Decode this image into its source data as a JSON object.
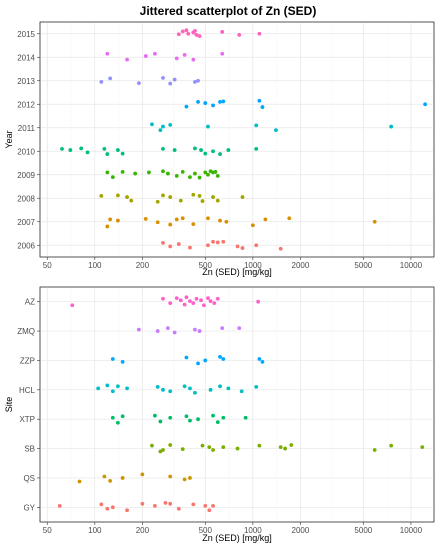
{
  "title": "Jittered scatterplot of Zn (SED)",
  "chart_data": [
    {
      "type": "scatter",
      "title": "Jittered scatterplot of Zn (SED)",
      "xlabel": "Zn (SED) [mg/kg]",
      "ylabel": "Year",
      "x_scale": "log",
      "xlim": [
        45,
        14000
      ],
      "x_ticks": [
        50,
        100,
        200,
        500,
        1000,
        2000,
        5000,
        10000
      ],
      "x_tick_labels": [
        "50",
        "100",
        "200",
        "500",
        "1000",
        "2000",
        "5000",
        "10000"
      ],
      "categories": [
        "2006",
        "2007",
        "2008",
        "2009",
        "2010",
        "2011",
        "2012",
        "2013",
        "2014",
        "2015"
      ],
      "grid": true,
      "series": [
        {
          "category": "2006",
          "color": "#F8766D",
          "points": [
            [
              270,
              0.1
            ],
            [
              300,
              -0.05
            ],
            [
              340,
              0.05
            ],
            [
              400,
              -0.1
            ],
            [
              520,
              0.0
            ],
            [
              560,
              0.15
            ],
            [
              600,
              0.12
            ],
            [
              650,
              0.15
            ],
            [
              800,
              -0.05
            ],
            [
              860,
              -0.12
            ],
            [
              1050,
              0.0
            ],
            [
              1500,
              -0.15
            ]
          ]
        },
        {
          "category": "2007",
          "color": "#D89000",
          "points": [
            [
              120,
              -0.2
            ],
            [
              125,
              0.1
            ],
            [
              140,
              0.05
            ],
            [
              210,
              0.12
            ],
            [
              250,
              -0.02
            ],
            [
              300,
              -0.12
            ],
            [
              330,
              0.1
            ],
            [
              360,
              0.15
            ],
            [
              420,
              -0.1
            ],
            [
              520,
              0.15
            ],
            [
              620,
              0.05
            ],
            [
              680,
              0.0
            ],
            [
              1000,
              -0.15
            ],
            [
              1200,
              0.1
            ],
            [
              1700,
              0.15
            ],
            [
              5900,
              0.0
            ]
          ]
        },
        {
          "category": "2008",
          "color": "#A3A500",
          "points": [
            [
              110,
              0.1
            ],
            [
              140,
              0.12
            ],
            [
              160,
              0.05
            ],
            [
              170,
              -0.1
            ],
            [
              250,
              -0.15
            ],
            [
              270,
              0.12
            ],
            [
              300,
              0.05
            ],
            [
              350,
              -0.1
            ],
            [
              420,
              0.15
            ],
            [
              460,
              0.1
            ],
            [
              480,
              -0.12
            ],
            [
              560,
              0.05
            ],
            [
              600,
              -0.1
            ],
            [
              860,
              0.05
            ]
          ]
        },
        {
          "category": "2009",
          "color": "#39B600",
          "points": [
            [
              120,
              0.1
            ],
            [
              130,
              -0.1
            ],
            [
              150,
              0.12
            ],
            [
              180,
              0.05
            ],
            [
              220,
              0.1
            ],
            [
              270,
              0.15
            ],
            [
              290,
              0.05
            ],
            [
              330,
              -0.05
            ],
            [
              360,
              0.12
            ],
            [
              400,
              -0.1
            ],
            [
              430,
              0.05
            ],
            [
              460,
              -0.12
            ],
            [
              500,
              0.1
            ],
            [
              520,
              0.0
            ],
            [
              540,
              0.15
            ],
            [
              560,
              0.1
            ],
            [
              580,
              0.12
            ],
            [
              600,
              -0.05
            ]
          ]
        },
        {
          "category": "2010",
          "color": "#00BF7D",
          "points": [
            [
              62,
              0.1
            ],
            [
              70,
              0.05
            ],
            [
              82,
              0.12
            ],
            [
              90,
              -0.05
            ],
            [
              115,
              0.1
            ],
            [
              120,
              -0.12
            ],
            [
              140,
              0.05
            ],
            [
              150,
              -0.1
            ],
            [
              270,
              0.1
            ],
            [
              320,
              0.05
            ],
            [
              430,
              0.12
            ],
            [
              470,
              0.05
            ],
            [
              500,
              -0.1
            ],
            [
              560,
              0.0
            ],
            [
              620,
              -0.12
            ],
            [
              700,
              0.05
            ],
            [
              1050,
              0.1
            ]
          ]
        },
        {
          "category": "2011",
          "color": "#00BFC4",
          "points": [
            [
              230,
              0.15
            ],
            [
              260,
              -0.1
            ],
            [
              270,
              0.05
            ],
            [
              300,
              0.12
            ],
            [
              520,
              0.05
            ],
            [
              1050,
              0.1
            ],
            [
              1400,
              -0.1
            ],
            [
              7500,
              0.05
            ]
          ]
        },
        {
          "category": "2012",
          "color": "#00A5FF",
          "points": [
            [
              380,
              -0.1
            ],
            [
              450,
              0.1
            ],
            [
              500,
              0.05
            ],
            [
              560,
              -0.05
            ],
            [
              620,
              0.1
            ],
            [
              650,
              0.12
            ],
            [
              1100,
              0.15
            ],
            [
              1150,
              -0.12
            ],
            [
              12300,
              0.0
            ]
          ]
        },
        {
          "category": "2013",
          "color": "#9590FF",
          "points": [
            [
              110,
              -0.05
            ],
            [
              125,
              0.1
            ],
            [
              190,
              -0.1
            ],
            [
              270,
              0.12
            ],
            [
              300,
              -0.12
            ],
            [
              320,
              0.05
            ],
            [
              430,
              -0.05
            ],
            [
              450,
              0.0
            ]
          ]
        },
        {
          "category": "2014",
          "color": "#E76BF3",
          "points": [
            [
              120,
              0.15
            ],
            [
              160,
              -0.1
            ],
            [
              210,
              0.05
            ],
            [
              240,
              0.15
            ],
            [
              330,
              -0.05
            ],
            [
              370,
              0.1
            ],
            [
              420,
              -0.1
            ],
            [
              640,
              0.15
            ]
          ]
        },
        {
          "category": "2015",
          "color": "#FF62BC",
          "points": [
            [
              340,
              -0.02
            ],
            [
              360,
              0.1
            ],
            [
              380,
              0.15
            ],
            [
              390,
              0.0
            ],
            [
              420,
              0.05
            ],
            [
              430,
              0.12
            ],
            [
              440,
              -0.05
            ],
            [
              460,
              -0.1
            ],
            [
              640,
              0.08
            ],
            [
              820,
              -0.05
            ],
            [
              1100,
              0.0
            ]
          ]
        }
      ]
    },
    {
      "type": "scatter",
      "xlabel": "Zn (SED) [mg/kg]",
      "ylabel": "Site",
      "x_scale": "log",
      "xlim": [
        45,
        14000
      ],
      "x_ticks": [
        50,
        100,
        200,
        500,
        1000,
        2000,
        5000,
        10000
      ],
      "x_tick_labels": [
        "50",
        "100",
        "200",
        "500",
        "1000",
        "2000",
        "5000",
        "10000"
      ],
      "categories": [
        "GY",
        "QS",
        "SB",
        "XTP",
        "HCL",
        "ZZP",
        "ZMQ",
        "AZ"
      ],
      "grid": true,
      "series": [
        {
          "category": "GY",
          "color": "#F8766D",
          "points": [
            [
              60,
              0.05
            ],
            [
              110,
              0.1
            ],
            [
              120,
              -0.05
            ],
            [
              130,
              0.0
            ],
            [
              160,
              -0.1
            ],
            [
              200,
              0.12
            ],
            [
              240,
              0.05
            ],
            [
              280,
              0.15
            ],
            [
              300,
              0.12
            ],
            [
              340,
              -0.05
            ],
            [
              420,
              0.1
            ],
            [
              500,
              0.05
            ],
            [
              530,
              -0.1
            ],
            [
              560,
              0.05
            ]
          ]
        },
        {
          "category": "QS",
          "color": "#CD9600",
          "points": [
            [
              80,
              -0.12
            ],
            [
              115,
              0.05
            ],
            [
              125,
              -0.1
            ],
            [
              150,
              0.0
            ],
            [
              200,
              0.12
            ],
            [
              300,
              0.05
            ],
            [
              370,
              -0.05
            ],
            [
              400,
              0.0
            ]
          ]
        },
        {
          "category": "SB",
          "color": "#7CAE00",
          "points": [
            [
              230,
              0.1
            ],
            [
              260,
              -0.1
            ],
            [
              270,
              -0.05
            ],
            [
              300,
              0.12
            ],
            [
              360,
              -0.02
            ],
            [
              480,
              0.1
            ],
            [
              530,
              0.05
            ],
            [
              560,
              -0.05
            ],
            [
              650,
              0.05
            ],
            [
              800,
              0.0
            ],
            [
              1100,
              0.1
            ],
            [
              1500,
              0.05
            ],
            [
              1600,
              0.0
            ],
            [
              1750,
              0.12
            ],
            [
              5900,
              -0.05
            ],
            [
              7500,
              0.1
            ],
            [
              11800,
              0.05
            ]
          ]
        },
        {
          "category": "XTP",
          "color": "#00BE67",
          "points": [
            [
              130,
              0.05
            ],
            [
              140,
              -0.12
            ],
            [
              150,
              0.1
            ],
            [
              240,
              0.12
            ],
            [
              260,
              -0.08
            ],
            [
              300,
              0.05
            ],
            [
              380,
              0.1
            ],
            [
              400,
              -0.05
            ],
            [
              450,
              0.0
            ],
            [
              560,
              0.12
            ],
            [
              600,
              -0.1
            ],
            [
              650,
              0.05
            ],
            [
              900,
              0.05
            ]
          ]
        },
        {
          "category": "HCL",
          "color": "#00BFC4",
          "points": [
            [
              105,
              0.05
            ],
            [
              120,
              0.15
            ],
            [
              130,
              -0.05
            ],
            [
              140,
              0.12
            ],
            [
              160,
              0.05
            ],
            [
              250,
              0.1
            ],
            [
              270,
              0.0
            ],
            [
              300,
              -0.05
            ],
            [
              370,
              0.12
            ],
            [
              400,
              0.05
            ],
            [
              430,
              -0.1
            ],
            [
              540,
              0.0
            ],
            [
              620,
              0.12
            ],
            [
              700,
              0.05
            ],
            [
              850,
              -0.05
            ],
            [
              1050,
              0.1
            ]
          ]
        },
        {
          "category": "ZZP",
          "color": "#00A9FF",
          "points": [
            [
              130,
              0.05
            ],
            [
              150,
              -0.05
            ],
            [
              380,
              0.1
            ],
            [
              450,
              -0.1
            ],
            [
              500,
              0.0
            ],
            [
              620,
              0.12
            ],
            [
              650,
              0.05
            ],
            [
              1100,
              0.05
            ],
            [
              1150,
              -0.05
            ]
          ]
        },
        {
          "category": "ZMQ",
          "color": "#C77CFF",
          "points": [
            [
              190,
              0.05
            ],
            [
              250,
              0.0
            ],
            [
              290,
              0.1
            ],
            [
              320,
              -0.05
            ],
            [
              430,
              0.05
            ],
            [
              460,
              0.0
            ],
            [
              640,
              0.1
            ],
            [
              820,
              0.1
            ]
          ]
        },
        {
          "category": "AZ",
          "color": "#FF61CC",
          "points": [
            [
              72,
              -0.12
            ],
            [
              270,
              0.1
            ],
            [
              300,
              -0.05
            ],
            [
              330,
              0.12
            ],
            [
              350,
              0.05
            ],
            [
              370,
              -0.1
            ],
            [
              380,
              0.15
            ],
            [
              400,
              0.02
            ],
            [
              420,
              -0.05
            ],
            [
              440,
              0.1
            ],
            [
              470,
              0.05
            ],
            [
              490,
              -0.12
            ],
            [
              520,
              0.12
            ],
            [
              540,
              0.02
            ],
            [
              570,
              -0.05
            ],
            [
              600,
              0.1
            ],
            [
              1080,
              0.0
            ]
          ]
        }
      ]
    }
  ]
}
